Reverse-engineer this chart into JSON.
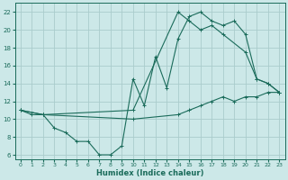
{
  "xlabel": "Humidex (Indice chaleur)",
  "bg_color": "#cce8e8",
  "grid_color": "#aacccc",
  "line_color": "#1a6b5a",
  "xlim": [
    -0.5,
    23.5
  ],
  "ylim": [
    5.5,
    23
  ],
  "xticks": [
    0,
    1,
    2,
    3,
    4,
    5,
    6,
    7,
    8,
    9,
    10,
    11,
    12,
    13,
    14,
    15,
    16,
    17,
    18,
    19,
    20,
    21,
    22,
    23
  ],
  "yticks": [
    6,
    8,
    10,
    12,
    14,
    16,
    18,
    20,
    22
  ],
  "line1_x": [
    0,
    1,
    2,
    3,
    4,
    5,
    6,
    7,
    8,
    9,
    10,
    11,
    12,
    13,
    14,
    15,
    16,
    17,
    18,
    19,
    20,
    21,
    22,
    23
  ],
  "line1_y": [
    11,
    10.5,
    10.5,
    9,
    8.5,
    7.5,
    7.5,
    6,
    6,
    7,
    14.5,
    11.5,
    17,
    13.5,
    19,
    21.5,
    22,
    21,
    20.5,
    21,
    19.5,
    14.5,
    14,
    13
  ],
  "line2_x": [
    0,
    2,
    10,
    14,
    15,
    16,
    17,
    18,
    20,
    21,
    22,
    23
  ],
  "line2_y": [
    11,
    10.5,
    11,
    22,
    21,
    20,
    20.5,
    19.5,
    17.5,
    14.5,
    14,
    13
  ],
  "line3_x": [
    0,
    2,
    10,
    14,
    15,
    16,
    17,
    18,
    19,
    20,
    21,
    22,
    23
  ],
  "line3_y": [
    11,
    10.5,
    10,
    10.5,
    11,
    11.5,
    12,
    12.5,
    12,
    12.5,
    12.5,
    13,
    13
  ]
}
